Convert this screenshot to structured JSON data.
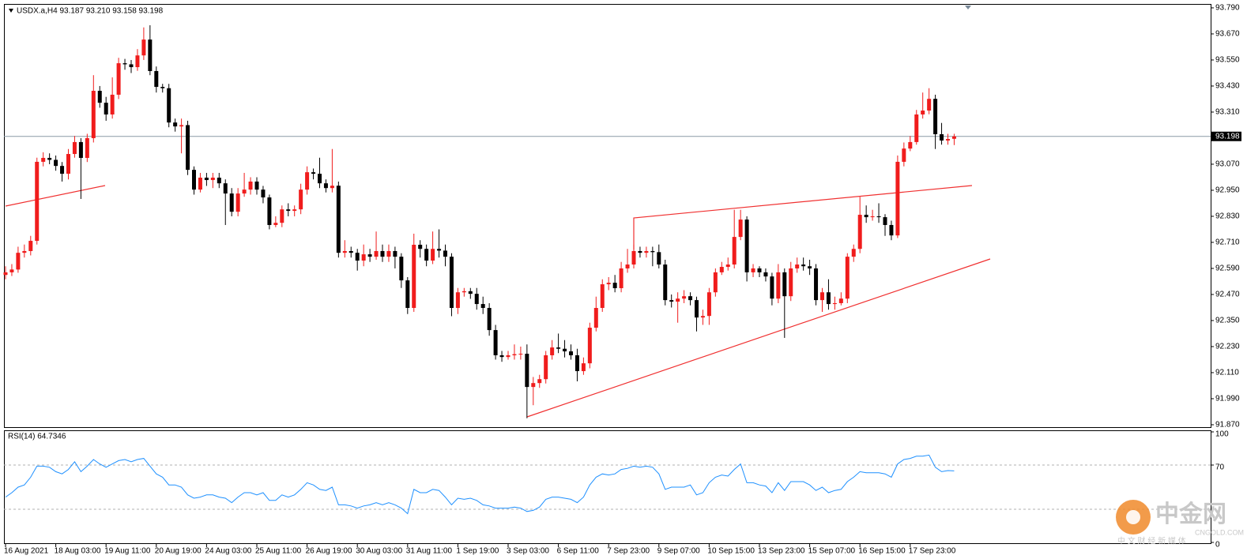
{
  "chart_data": [
    {
      "type": "candlestick",
      "title": "USDX.a,H4  93.187 93.210 93.158 93.198",
      "up_color": "#f01c1c",
      "down_color": "#000000",
      "price_line_color": "#8a9aa6",
      "last_price": 93.198,
      "ylim": [
        91.859,
        93.808
      ],
      "yticks": [
        {
          "value": 93.79,
          "label": "93.790"
        },
        {
          "value": 93.67,
          "label": "93.670"
        },
        {
          "value": 93.55,
          "label": "93.550"
        },
        {
          "value": 93.43,
          "label": "93.430"
        },
        {
          "value": 93.31,
          "label": "93.310"
        },
        {
          "value": 93.07,
          "label": "93.070"
        },
        {
          "value": 92.95,
          "label": "92.950"
        },
        {
          "value": 92.83,
          "label": "92.830"
        },
        {
          "value": 92.71,
          "label": "92.710"
        },
        {
          "value": 92.59,
          "label": "92.590"
        },
        {
          "value": 92.47,
          "label": "92.470"
        },
        {
          "value": 92.35,
          "label": "92.350"
        },
        {
          "value": 92.23,
          "label": "92.230"
        },
        {
          "value": 92.11,
          "label": "92.110"
        },
        {
          "value": 91.99,
          "label": "91.990"
        },
        {
          "value": 91.87,
          "label": "91.870"
        }
      ],
      "categories": [
        "16 Aug 2021",
        null,
        null,
        null,
        null,
        null,
        null,
        null,
        "18 Aug 03:00",
        null,
        null,
        null,
        null,
        null,
        null,
        null,
        "19 Aug 11:00",
        null,
        null,
        null,
        null,
        null,
        null,
        null,
        "20 Aug 19:00",
        null,
        null,
        null,
        null,
        null,
        null,
        null,
        "24 Aug 03:00",
        null,
        null,
        null,
        null,
        null,
        null,
        null,
        "25 Aug 11:00",
        null,
        null,
        null,
        null,
        null,
        null,
        null,
        "26 Aug 19:00",
        null,
        null,
        null,
        null,
        null,
        null,
        null,
        "30 Aug 03:00",
        null,
        null,
        null,
        null,
        null,
        null,
        null,
        "31 Aug 11:00",
        null,
        null,
        null,
        null,
        null,
        null,
        null,
        "1 Sep 19:00",
        null,
        null,
        null,
        null,
        null,
        null,
        null,
        "3 Sep 03:00",
        null,
        null,
        null,
        null,
        null,
        null,
        null,
        "6 Sep 11:00",
        null,
        null,
        null,
        null,
        null,
        null,
        null,
        "7 Sep 23:00",
        null,
        null,
        null,
        null,
        null,
        null,
        null,
        "9 Sep 07:00",
        null,
        null,
        null,
        null,
        null,
        null,
        null,
        "10 Sep 15:00",
        null,
        null,
        null,
        null,
        null,
        null,
        null,
        "13 Sep 23:00",
        null,
        null,
        null,
        null,
        null,
        null,
        null,
        "15 Sep 07:00",
        null,
        null,
        null,
        null,
        null,
        null,
        null,
        "16 Sep 15:00",
        null,
        null,
        null,
        null,
        null,
        null,
        null,
        "17 Sep 23:00",
        null,
        null,
        null,
        null,
        null,
        null,
        null
      ],
      "open": [
        92.56,
        92.572,
        92.585,
        92.662,
        92.67,
        92.717,
        93.081,
        93.099,
        93.09,
        93.062,
        93.026,
        93.117,
        93.172,
        93.099,
        93.19,
        93.408,
        93.353,
        93.299,
        93.39,
        93.535,
        93.53,
        93.517,
        93.571,
        93.644,
        93.499,
        93.426,
        93.42,
        93.262,
        93.244,
        93.25,
        93.044,
        92.953,
        93.008,
        92.997,
        93.008,
        92.982,
        92.935,
        92.851,
        92.935,
        92.953,
        92.99,
        92.953,
        92.917,
        92.79,
        92.8,
        92.862,
        92.855,
        92.862,
        92.953,
        93.033,
        93.026,
        92.982,
        92.96,
        92.971,
        92.662,
        92.67,
        92.662,
        92.626,
        92.655,
        92.644,
        92.67,
        92.644,
        92.67,
        92.644,
        92.535,
        92.408,
        92.699,
        92.68,
        92.626,
        92.68,
        92.672,
        92.644,
        92.408,
        92.48,
        92.485,
        92.473,
        92.426,
        92.408,
        92.306,
        92.19,
        92.182,
        92.19,
        92.195,
        92.197,
        92.044,
        92.062,
        92.08,
        92.19,
        92.226,
        92.22,
        92.208,
        92.19,
        92.117,
        92.153,
        92.317,
        92.408,
        92.517,
        92.524,
        92.499,
        92.59,
        92.608,
        92.67,
        92.662,
        92.67,
        92.665,
        92.608,
        92.444,
        92.437,
        92.451,
        92.462,
        92.444,
        92.364,
        92.371,
        92.48,
        92.572,
        92.597,
        92.608,
        92.735,
        92.815,
        92.572,
        92.59,
        92.572,
        92.553,
        92.451,
        92.572,
        92.462,
        92.59,
        92.608,
        92.6,
        92.59,
        92.444,
        92.48,
        92.426,
        92.43,
        92.451,
        92.644,
        92.68,
        92.837,
        92.826,
        92.83,
        92.826,
        92.79,
        92.742,
        93.081,
        93.142,
        93.172,
        93.299,
        93.317,
        93.371,
        93.208,
        93.179,
        93.187
      ],
      "high": [
        92.6,
        92.61,
        92.69,
        92.7,
        92.74,
        93.1,
        93.125,
        93.12,
        93.11,
        93.08,
        93.14,
        93.2,
        93.19,
        93.21,
        93.48,
        93.43,
        93.38,
        93.47,
        93.56,
        93.555,
        93.55,
        93.6,
        93.7,
        93.71,
        93.52,
        93.44,
        93.44,
        93.28,
        93.28,
        93.27,
        93.06,
        93.03,
        93.03,
        93.03,
        93.03,
        93.0,
        92.96,
        92.96,
        93.03,
        93.01,
        93.01,
        92.97,
        92.93,
        92.83,
        92.88,
        92.89,
        92.88,
        92.98,
        93.06,
        93.05,
        93.1,
        93.0,
        93.14,
        92.99,
        92.72,
        92.69,
        92.68,
        92.7,
        92.68,
        92.76,
        92.7,
        92.7,
        92.69,
        92.66,
        92.55,
        92.75,
        92.72,
        92.7,
        92.76,
        92.77,
        92.7,
        92.66,
        92.5,
        92.5,
        92.5,
        92.5,
        92.46,
        92.43,
        92.33,
        92.21,
        92.21,
        92.24,
        92.23,
        92.24,
        92.09,
        92.1,
        92.21,
        92.26,
        92.29,
        92.26,
        92.24,
        92.22,
        92.18,
        92.34,
        92.46,
        92.54,
        92.55,
        92.56,
        92.62,
        92.68,
        92.7,
        92.69,
        92.69,
        92.69,
        92.7,
        92.63,
        92.47,
        92.48,
        92.49,
        92.48,
        92.46,
        92.4,
        92.5,
        92.59,
        92.62,
        92.64,
        92.86,
        92.86,
        92.83,
        92.61,
        92.6,
        92.59,
        92.57,
        92.61,
        92.59,
        92.62,
        92.64,
        92.64,
        92.63,
        92.61,
        92.5,
        92.54,
        92.46,
        92.48,
        92.66,
        92.7,
        92.92,
        92.88,
        92.86,
        92.89,
        92.84,
        92.81,
        93.11,
        93.17,
        93.2,
        93.32,
        93.4,
        93.42,
        93.39,
        93.26,
        93.21,
        93.21
      ],
      "low": [
        92.54,
        92.555,
        92.57,
        92.64,
        92.65,
        92.7,
        93.06,
        93.07,
        93.04,
        92.99,
        93.0,
        93.1,
        92.91,
        93.08,
        93.17,
        93.33,
        93.27,
        93.28,
        93.37,
        93.505,
        93.49,
        93.5,
        93.55,
        93.48,
        93.4,
        93.4,
        93.24,
        93.22,
        93.12,
        93.02,
        92.93,
        92.94,
        92.97,
        92.96,
        92.96,
        92.79,
        92.83,
        92.83,
        92.92,
        92.93,
        92.93,
        92.89,
        92.77,
        92.78,
        92.78,
        92.83,
        92.83,
        92.84,
        92.93,
        93.0,
        92.96,
        92.94,
        92.94,
        92.64,
        92.64,
        92.64,
        92.58,
        92.6,
        92.62,
        92.63,
        92.62,
        92.62,
        92.59,
        92.5,
        92.38,
        92.39,
        92.64,
        92.6,
        92.61,
        92.64,
        92.6,
        92.37,
        92.38,
        92.46,
        92.45,
        92.4,
        92.38,
        92.28,
        92.17,
        92.16,
        92.17,
        92.17,
        92.17,
        91.9,
        91.96,
        92.04,
        92.06,
        92.17,
        92.2,
        92.18,
        92.17,
        92.07,
        92.1,
        92.13,
        92.3,
        92.39,
        92.49,
        92.48,
        92.48,
        92.57,
        92.59,
        92.64,
        92.64,
        92.6,
        92.59,
        92.42,
        92.41,
        92.34,
        92.43,
        92.42,
        92.3,
        92.33,
        92.33,
        92.46,
        92.56,
        92.58,
        92.59,
        92.72,
        92.53,
        92.55,
        92.55,
        92.53,
        92.42,
        92.43,
        92.27,
        92.44,
        92.57,
        92.58,
        92.56,
        92.42,
        92.39,
        92.4,
        92.4,
        92.42,
        92.43,
        92.62,
        92.66,
        92.8,
        92.81,
        92.8,
        92.74,
        92.72,
        92.73,
        93.06,
        93.13,
        93.16,
        93.28,
        93.3,
        93.14,
        93.16,
        93.16,
        93.158
      ],
      "close": [
        92.572,
        92.585,
        92.662,
        92.67,
        92.717,
        93.081,
        93.099,
        93.09,
        93.062,
        93.026,
        93.117,
        93.172,
        93.099,
        93.19,
        93.408,
        93.353,
        93.299,
        93.39,
        93.535,
        93.53,
        93.517,
        93.571,
        93.644,
        93.499,
        93.426,
        93.42,
        93.262,
        93.244,
        93.25,
        93.044,
        92.953,
        93.008,
        92.997,
        93.008,
        92.982,
        92.935,
        92.851,
        92.935,
        92.953,
        92.99,
        92.953,
        92.917,
        92.79,
        92.8,
        92.862,
        92.855,
        92.862,
        92.953,
        93.033,
        93.026,
        92.982,
        92.96,
        92.971,
        92.662,
        92.67,
        92.662,
        92.626,
        92.655,
        92.644,
        92.67,
        92.644,
        92.67,
        92.644,
        92.535,
        92.408,
        92.699,
        92.68,
        92.626,
        92.68,
        92.672,
        92.644,
        92.408,
        92.48,
        92.485,
        92.473,
        92.426,
        92.408,
        92.306,
        92.19,
        92.182,
        92.19,
        92.195,
        92.197,
        92.044,
        92.062,
        92.08,
        92.19,
        92.226,
        92.22,
        92.208,
        92.19,
        92.117,
        92.153,
        92.317,
        92.408,
        92.517,
        92.524,
        92.499,
        92.59,
        92.608,
        92.67,
        92.662,
        92.67,
        92.665,
        92.608,
        92.444,
        92.437,
        92.451,
        92.462,
        92.444,
        92.364,
        92.371,
        92.48,
        92.572,
        92.597,
        92.608,
        92.735,
        92.815,
        92.572,
        92.59,
        92.572,
        92.553,
        92.451,
        92.572,
        92.462,
        92.59,
        92.608,
        92.6,
        92.59,
        92.444,
        92.48,
        92.426,
        92.43,
        92.451,
        92.644,
        92.68,
        92.837,
        92.826,
        92.83,
        92.826,
        92.79,
        92.742,
        93.081,
        93.142,
        93.172,
        93.299,
        93.317,
        93.371,
        93.208,
        93.179,
        93.186,
        93.198
      ]
    },
    {
      "type": "line",
      "title": "RSI(14) 64.7346",
      "color": "#1e90ff",
      "ylim": [
        0,
        100
      ],
      "yticks": [
        100,
        70,
        0
      ],
      "levels": [
        70,
        30
      ],
      "values": [
        41,
        45,
        50,
        52,
        59,
        69,
        69,
        68,
        64,
        62,
        66,
        73,
        64,
        69,
        75,
        71,
        68,
        71,
        74,
        75,
        73,
        75,
        76,
        69,
        62,
        59,
        52,
        52,
        50,
        43,
        40,
        41,
        43,
        43,
        41,
        40,
        36,
        41,
        45,
        45,
        43,
        45,
        38,
        38,
        43,
        41,
        43,
        48,
        54,
        52,
        48,
        47,
        50,
        34,
        34,
        33,
        31,
        33,
        34,
        36,
        34,
        36,
        34,
        31,
        26,
        48,
        45,
        45,
        48,
        47,
        41,
        34,
        40,
        39,
        40,
        38,
        34,
        33,
        31,
        31,
        31,
        32,
        31,
        28,
        29,
        32,
        39,
        41,
        41,
        40,
        39,
        36,
        41,
        52,
        59,
        62,
        61,
        62,
        66,
        67,
        69,
        68,
        69,
        68,
        62,
        48,
        50,
        50,
        50,
        52,
        43,
        45,
        54,
        59,
        61,
        60,
        66,
        71,
        54,
        54,
        52,
        51,
        45,
        54,
        47,
        55,
        55,
        55,
        52,
        47,
        50,
        45,
        47,
        48,
        55,
        59,
        64,
        63,
        63,
        63,
        62,
        59,
        71,
        75,
        76,
        78,
        78,
        79,
        68,
        64,
        65,
        64.7346
      ]
    }
  ],
  "watermark": {
    "brand": "中金网",
    "site": "CNGOLD.COM",
    "tagline": "中 文 财 经 新 媒 体"
  }
}
